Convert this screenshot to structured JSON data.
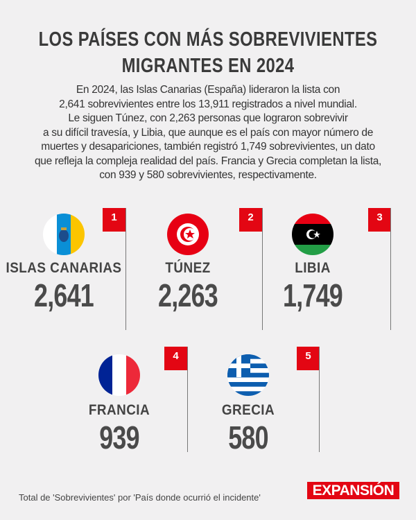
{
  "title_lines": [
    "LOS PAÍSES CON MÁS SOBREVIVIENTES",
    "MIGRANTES EN 2024"
  ],
  "description_lines": [
    "En 2024, las Islas Canarias (España) lideraron la lista con",
    "2,641 sobrevivientes entre los 13,911 registrados a nivel mundial.",
    "Le siguen Túnez, con 2,263 personas que lograron sobrevivir",
    "a su difícil travesía, y Libia, que aunque es el país con mayor número de",
    "muertes y desapariciones, también registró 1,749 sobrevivientes,  un dato",
    "que refleja la compleja realidad del país. Francia y Grecia completan la lista,",
    "con 939 y 580 sobrevivientes, respectivamente."
  ],
  "countries": [
    {
      "rank": "1",
      "name": "ISLAS CANARIAS",
      "value": "2,641",
      "flag": "canary-islands-flag"
    },
    {
      "rank": "2",
      "name": "TÚNEZ",
      "value": "2,263",
      "flag": "tunisia-flag"
    },
    {
      "rank": "3",
      "name": "LIBIA",
      "value": "1,749",
      "flag": "libya-flag"
    },
    {
      "rank": "4",
      "name": "FRANCIA",
      "value": "939",
      "flag": "france-flag"
    },
    {
      "rank": "5",
      "name": "GRECIA",
      "value": "580",
      "flag": "greece-flag"
    }
  ],
  "footer": "Total de 'Sobrevivientes' por 'País donde ocurrió el incidente'",
  "logo": "EXPANSIÓN",
  "colors": {
    "accent": "#e30613",
    "text": "#333333",
    "background": "#f1f0f1"
  }
}
